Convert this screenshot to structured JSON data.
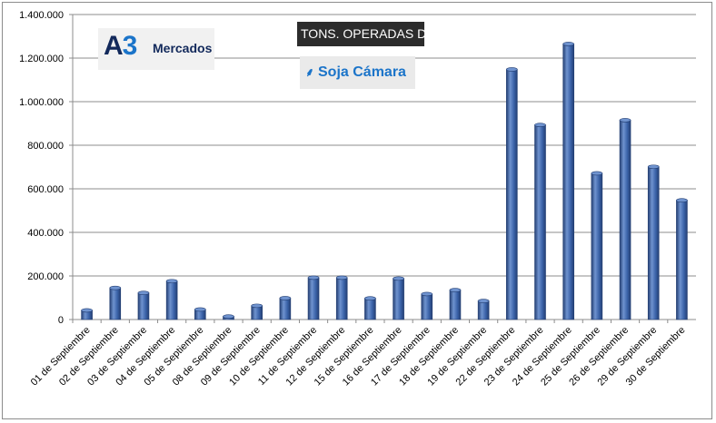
{
  "brand": {
    "logo_mark_a": "A",
    "logo_mark_3": "3",
    "logo_text": "Mercados",
    "title_badge": "TONS. OPERADAS D",
    "subtitle_badge": "Soja Cámara",
    "subtitle_icon": "wheat-icon"
  },
  "colors": {
    "bar_fill": "#3a62a8",
    "bar_dark": "#243f73",
    "bar_light": "#6f93cf",
    "grid": "#8c8c8c"
  },
  "chart_data": {
    "type": "bar",
    "categories": [
      "01 de Septiembre",
      "02 de Septiembre",
      "03 de Septiembre",
      "04 de Septiembre",
      "05 de Septiembre",
      "08 de Septiembre",
      "09 de Septiembre",
      "10 de Septiembre",
      "11 de Septiembre",
      "12 de Septiembre",
      "15 de Septiembre",
      "16 de Septiembre",
      "17 de Septiembre",
      "18 de Septiembre",
      "19 de Septiembre",
      "22 de Septiembre",
      "23 de Septiembre",
      "24 de Septiembre",
      "25 de Septiembre",
      "26 de Septiembre",
      "29 de Septiembre",
      "30 de Septiembre"
    ],
    "values": [
      42000,
      145000,
      122000,
      176000,
      46000,
      14000,
      63000,
      98000,
      192000,
      192000,
      97000,
      188000,
      117000,
      135000,
      85000,
      1148000,
      893000,
      1265000,
      671000,
      915000,
      701000,
      547000
    ],
    "ylim": [
      0,
      1400000
    ],
    "yticks": [
      "0",
      "200.000",
      "400.000",
      "600.000",
      "800.000",
      "1.000.000",
      "1.200.000",
      "1.400.000"
    ],
    "ytick_values": [
      0,
      200000,
      400000,
      600000,
      800000,
      1000000,
      1200000,
      1400000
    ],
    "grid": true,
    "legend": "none"
  }
}
